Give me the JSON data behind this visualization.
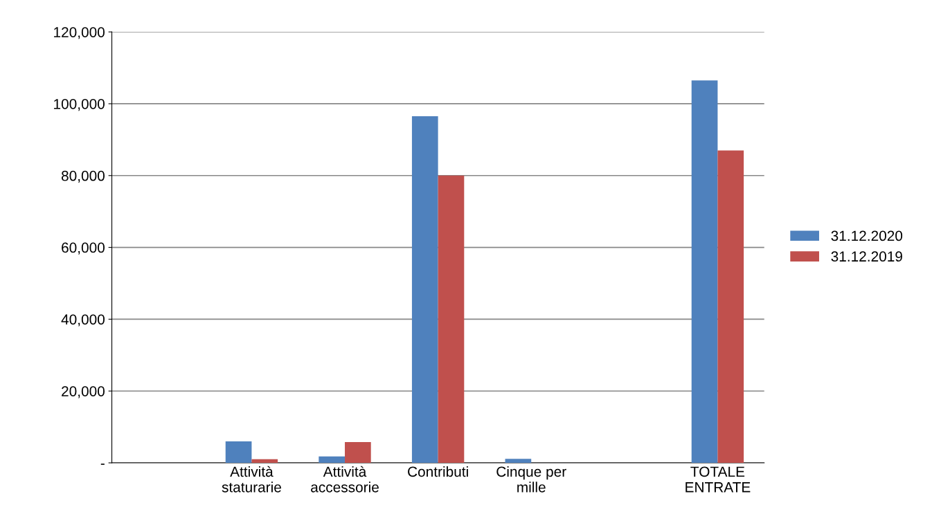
{
  "chart_data": {
    "type": "bar",
    "categories": [
      null,
      "Attività\nstaturarie",
      "Attività\naccessorie",
      "Contributi",
      "Cinque per\nmille",
      null,
      "TOTALE\nENTRATE"
    ],
    "series": [
      {
        "name": "31.12.2020",
        "color": "#4f81bd",
        "values": [
          null,
          6000,
          1800,
          96500,
          1100,
          null,
          106500
        ]
      },
      {
        "name": "31.12.2019",
        "color": "#c0504d",
        "values": [
          null,
          1000,
          5800,
          80000,
          null,
          null,
          87000
        ]
      }
    ],
    "ylim": [
      0,
      120000
    ],
    "yticks": [
      {
        "value": 0,
        "label": "-"
      },
      {
        "value": 20000,
        "label": "20,000"
      },
      {
        "value": 40000,
        "label": "40,000"
      },
      {
        "value": 60000,
        "label": "60,000"
      },
      {
        "value": 80000,
        "label": "80,000"
      },
      {
        "value": 100000,
        "label": "100,000"
      },
      {
        "value": 120000,
        "label": "120,000"
      }
    ],
    "grid": "y",
    "legend": "right"
  }
}
